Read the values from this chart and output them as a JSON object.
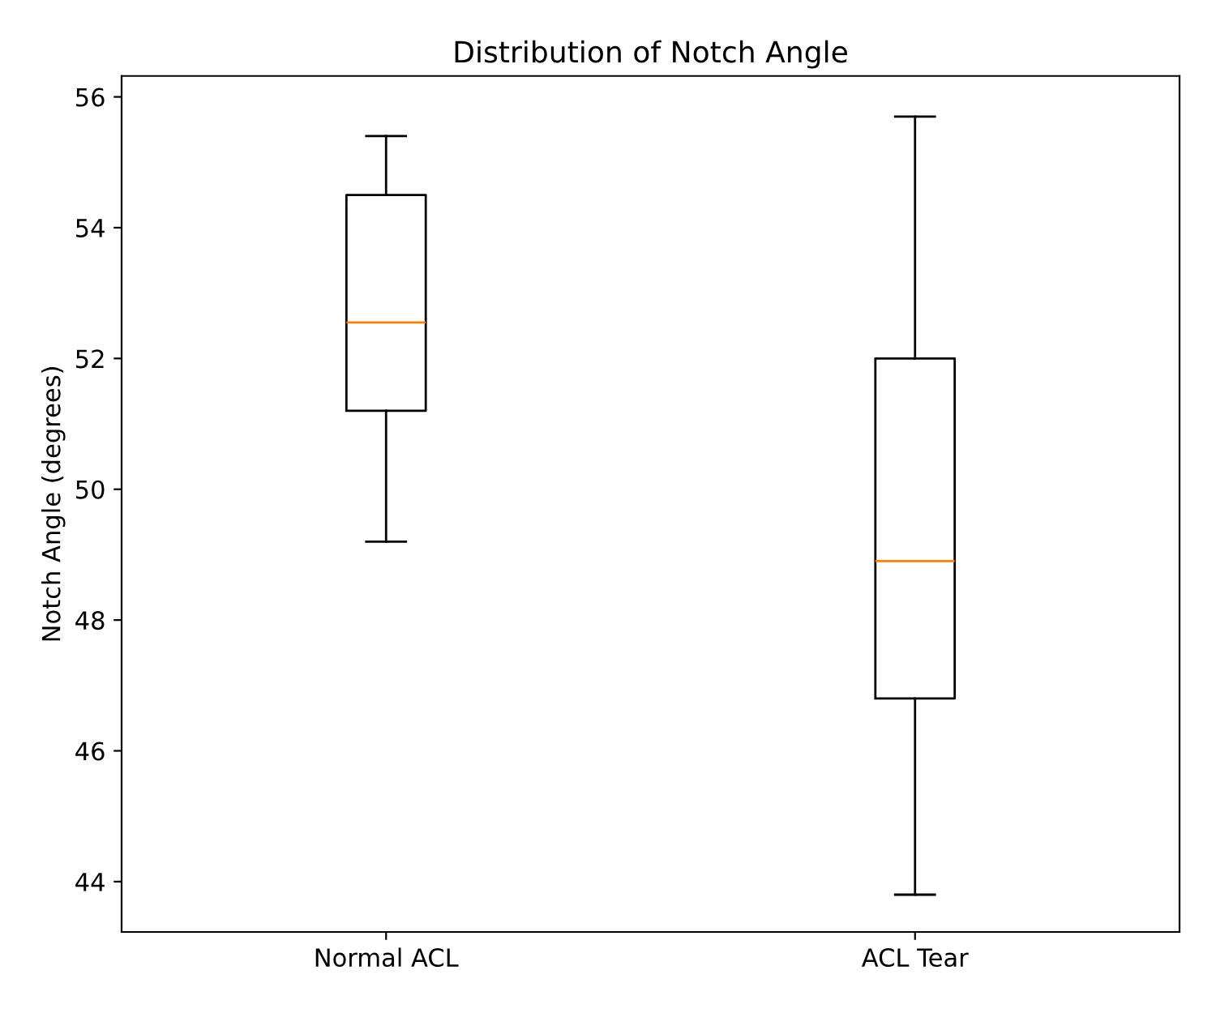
{
  "chart_data": {
    "type": "box",
    "title": "Distribution of Notch Angle",
    "ylabel": "Notch Angle (degrees)",
    "categories": [
      "Normal ACL",
      "ACL Tear"
    ],
    "boxes": [
      {
        "low": 49.2,
        "q1": 51.2,
        "median": 52.55,
        "q3": 54.5,
        "high": 55.4
      },
      {
        "low": 43.8,
        "q1": 46.8,
        "median": 48.9,
        "q3": 52.0,
        "high": 55.7
      }
    ],
    "ylim": [
      43.23,
      56.32
    ],
    "yticks": [
      44,
      46,
      48,
      50,
      52,
      54,
      56
    ],
    "grid": false
  }
}
